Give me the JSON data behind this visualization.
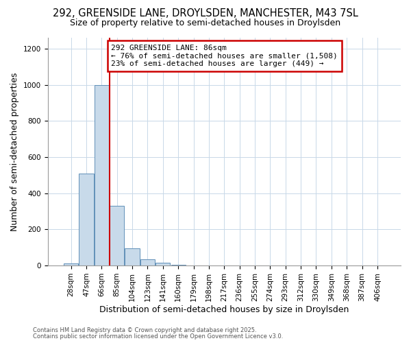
{
  "title": "292, GREENSIDE LANE, DROYLSDEN, MANCHESTER, M43 7SL",
  "subtitle": "Size of property relative to semi-detached houses in Droylsden",
  "xlabel": "Distribution of semi-detached houses by size in Droylsden",
  "ylabel": "Number of semi-detached properties",
  "categories": [
    "28sqm",
    "47sqm",
    "66sqm",
    "85sqm",
    "104sqm",
    "123sqm",
    "141sqm",
    "160sqm",
    "179sqm",
    "198sqm",
    "217sqm",
    "236sqm",
    "255sqm",
    "274sqm",
    "293sqm",
    "312sqm",
    "330sqm",
    "349sqm",
    "368sqm",
    "387sqm",
    "406sqm"
  ],
  "values": [
    10,
    510,
    1000,
    330,
    95,
    35,
    15,
    5,
    0,
    0,
    0,
    0,
    0,
    0,
    0,
    0,
    0,
    0,
    0,
    0,
    0
  ],
  "bar_color": "#c8daea",
  "bar_edge_color": "#6090b8",
  "grid_color": "#c8d8e8",
  "background_color": "#ffffff",
  "vline_x": 2.5,
  "vline_color": "#cc0000",
  "annotation_line1": "292 GREENSIDE LANE: 86sqm",
  "annotation_line2": "← 76% of semi-detached houses are smaller (1,508)",
  "annotation_line3": "23% of semi-detached houses are larger (449) →",
  "annotation_box_color": "#cc0000",
  "ylim": [
    0,
    1260
  ],
  "yticks": [
    0,
    200,
    400,
    600,
    800,
    1000,
    1200
  ],
  "footer_line1": "Contains HM Land Registry data © Crown copyright and database right 2025.",
  "footer_line2": "Contains public sector information licensed under the Open Government Licence v3.0.",
  "title_fontsize": 10.5,
  "subtitle_fontsize": 9,
  "tick_fontsize": 7.5,
  "label_fontsize": 9,
  "ann_fontsize": 8
}
